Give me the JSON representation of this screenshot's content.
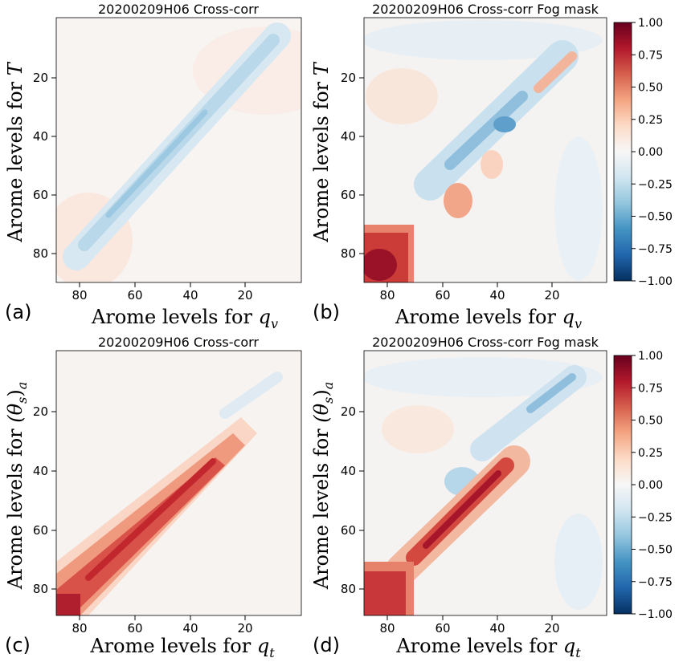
{
  "figure": {
    "panels": [
      {
        "label": "(a)",
        "title": "20200209H06 Cross-corr",
        "xlabel_prefix": "Arome levels for ",
        "xvar": "q",
        "xsub": "v",
        "ylabel_prefix": "Arome levels for ",
        "yvar": "T",
        "ysub": "",
        "colorbar": false
      },
      {
        "label": "(b)",
        "title": "20200209H06 Cross-corr Fog mask",
        "xlabel_prefix": "Arome levels for ",
        "xvar": "q",
        "xsub": "v",
        "ylabel_prefix": "Arome levels for ",
        "yvar": "T",
        "ysub": "",
        "colorbar": true
      },
      {
        "label": "(c)",
        "title": "20200209H06 Cross-corr",
        "xlabel_prefix": "Arome levels for ",
        "xvar": "q",
        "xsub": "t",
        "ylabel_prefix": "Arome levels for ",
        "yvar": "(θ",
        "ysub": "s",
        "yclose": ")",
        "yclosesub": "a",
        "colorbar": false
      },
      {
        "label": "(d)",
        "title": "20200209H06 Cross-corr Fog mask",
        "xlabel_prefix": "Arome levels for ",
        "xvar": "q",
        "xsub": "t",
        "ylabel_prefix": "Arome levels for ",
        "yvar": "(θ",
        "ysub": "s",
        "yclose": ")",
        "yclosesub": "a",
        "colorbar": true
      }
    ]
  },
  "chart_data": [
    {
      "type": "heatmap",
      "panel": "(a)",
      "title": "20200209H06 Cross-corr",
      "xlabel": "Arome levels for q_v",
      "ylabel": "Arome levels for T",
      "x_ticks": [
        80,
        60,
        40,
        20
      ],
      "y_ticks": [
        20,
        40,
        60,
        80
      ],
      "xlim": [
        90,
        0
      ],
      "ylim": [
        90,
        0
      ],
      "value_range": [
        -1.0,
        1.0
      ],
      "features": [
        {
          "kind": "diagonal_band",
          "from_level": 82,
          "to_level": 8,
          "value": -0.25
        },
        {
          "kind": "background",
          "value": 0.05
        }
      ]
    },
    {
      "type": "heatmap",
      "panel": "(b)",
      "title": "20200209H06 Cross-corr Fog mask",
      "xlabel": "Arome levels for q_v",
      "ylabel": "Arome levels for T",
      "x_ticks": [
        80,
        60,
        40,
        20
      ],
      "y_ticks": [
        20,
        40,
        60,
        80
      ],
      "xlim": [
        90,
        0
      ],
      "ylim": [
        90,
        0
      ],
      "value_range": [
        -1.0,
        1.0
      ],
      "features": [
        {
          "kind": "corner_block",
          "x_from": 90,
          "x_to": 73,
          "y_from": 70,
          "y_to": 90,
          "value": 0.9
        },
        {
          "kind": "diagonal_band",
          "from_level": 60,
          "to_level": 12,
          "value": -0.35
        },
        {
          "kind": "blob",
          "x": 54,
          "y": 62,
          "value": 0.45
        },
        {
          "kind": "blob",
          "x": 20,
          "y": 20,
          "value": 0.4
        }
      ]
    },
    {
      "type": "heatmap",
      "panel": "(c)",
      "title": "20200209H06 Cross-corr",
      "xlabel": "Arome levels for q_t",
      "ylabel": "Arome levels for (θ_s)_a",
      "x_ticks": [
        80,
        60,
        40,
        20
      ],
      "y_ticks": [
        20,
        40,
        60,
        80
      ],
      "xlim": [
        90,
        0
      ],
      "ylim": [
        90,
        0
      ],
      "value_range": [
        -1.0,
        1.0
      ],
      "features": [
        {
          "kind": "diagonal_band",
          "from_level": 90,
          "to_level": 32,
          "value": 0.85
        },
        {
          "kind": "diagonal_band",
          "from_level": 20,
          "to_level": 8,
          "value": -0.2
        }
      ]
    },
    {
      "type": "heatmap",
      "panel": "(d)",
      "title": "20200209H06 Cross-corr Fog mask",
      "xlabel": "Arome levels for q_t",
      "ylabel": "Arome levels for (θ_s)_a",
      "x_ticks": [
        80,
        60,
        40,
        20
      ],
      "y_ticks": [
        20,
        40,
        60,
        80
      ],
      "xlim": [
        90,
        0
      ],
      "ylim": [
        90,
        0
      ],
      "value_range": [
        -1.0,
        1.0
      ],
      "features": [
        {
          "kind": "corner_block",
          "x_from": 90,
          "x_to": 73,
          "y_from": 72,
          "y_to": 90,
          "value": 0.8
        },
        {
          "kind": "diagonal_band",
          "from_level": 75,
          "to_level": 35,
          "value": 0.85
        },
        {
          "kind": "diagonal_band",
          "from_level": 30,
          "to_level": 8,
          "value": -0.35
        }
      ]
    }
  ],
  "colorbar": {
    "ticks": [
      "1.00",
      "0.75",
      "0.50",
      "0.25",
      "0.00",
      "−0.25",
      "−0.50",
      "−0.75",
      "−1.00"
    ],
    "values": [
      1.0,
      0.75,
      0.5,
      0.25,
      0.0,
      -0.25,
      -0.5,
      -0.75,
      -1.0
    ],
    "colors": [
      "#67001f",
      "#b2182b",
      "#d6604d",
      "#f4a582",
      "#fddbc7",
      "#f7f7f7",
      "#d1e5f0",
      "#92c5de",
      "#4393c3",
      "#2166ac",
      "#053061"
    ]
  }
}
